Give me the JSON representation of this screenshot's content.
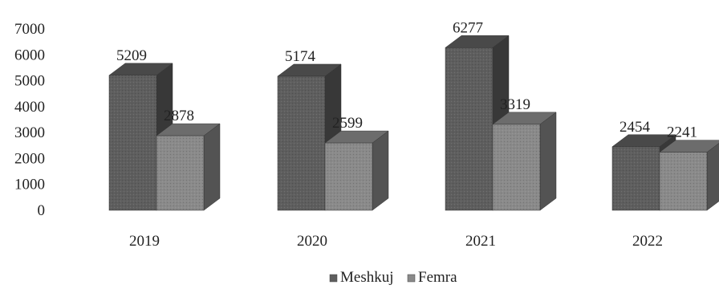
{
  "chart_data": {
    "type": "bar",
    "categories": [
      "2019",
      "2020",
      "2021",
      "2022"
    ],
    "series": [
      {
        "name": "Meshkuj",
        "values": [
          5209,
          5174,
          6277,
          2454
        ],
        "color": "#5e5e5e"
      },
      {
        "name": "Femra",
        "values": [
          2878,
          2599,
          3319,
          2241
        ],
        "color": "#8a8a8a"
      }
    ],
    "data_labels": [
      [
        "5209",
        "2878"
      ],
      [
        "5174",
        "2599"
      ],
      [
        "6277",
        "3319"
      ],
      [
        "2454",
        "2241"
      ]
    ],
    "yticks": [
      "0",
      "1000",
      "2000",
      "3000",
      "4000",
      "5000",
      "6000",
      "7000"
    ],
    "ylim": [
      0,
      7000
    ],
    "grid": false,
    "legend_position": "bottom",
    "style": "3d"
  }
}
